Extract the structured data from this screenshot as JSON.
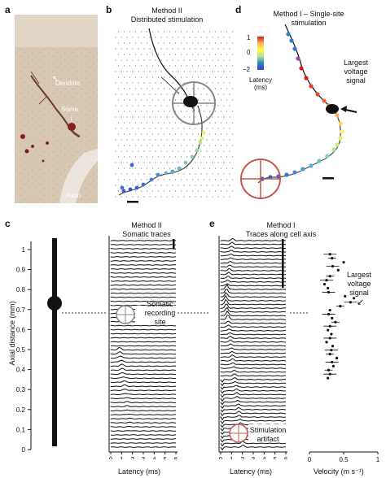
{
  "panels": {
    "a": {
      "letter": "a",
      "labels": {
        "dendrite": "Dendrite",
        "soma": "Soma",
        "axon": "Axon"
      }
    },
    "b": {
      "letter": "b",
      "title_line1": "Method II",
      "title_line2": "Distributed stimulation"
    },
    "c": {
      "letter": "c",
      "ylabel": "Axial distance (mm)",
      "yticks": [
        "0",
        "0.1",
        "0.2",
        "0.3",
        "0.4",
        "0.5",
        "0.6",
        "0.7",
        "0.8",
        "0.9",
        "1"
      ],
      "traces_title_line1": "Method II",
      "traces_title_line2": "Somatic traces",
      "site_label_line1": "Somatic",
      "site_label_line2": "recording",
      "site_label_line3": "site",
      "xlabel": "Latency (ms)",
      "xticks": [
        "0",
        "1",
        "2",
        "3",
        "4",
        "5",
        "6"
      ]
    },
    "d": {
      "letter": "d",
      "title_line1": "Method I – Single-site",
      "title_line2": "stimulation",
      "colorbar_ticks": [
        "1",
        "0",
        "−2"
      ],
      "colorbar_label_line1": "Latency",
      "colorbar_label_line2": "(ms)",
      "colorbar_colors": [
        "#d7191c",
        "#fdae61",
        "#ffff33",
        "#abdda4",
        "#2b83ba",
        "#3b3bd0"
      ],
      "arrow_label_line1": "Largest",
      "arrow_label_line2": "voltage",
      "arrow_label_line3": "signal"
    },
    "e": {
      "letter": "e",
      "traces_title_line1": "Method I",
      "traces_title_line2": "Traces along cell axis",
      "artifact_label_line1": "Stimulation",
      "artifact_label_line2": "artifact",
      "xlabel": "Latency (ms)",
      "xticks": [
        "0",
        "1",
        "2",
        "3",
        "4",
        "5",
        "6"
      ],
      "arrow_label_line1": "Largest",
      "arrow_label_line2": "voltage",
      "arrow_label_line3": "signal",
      "velocity_xlabel": "Velocity (m s⁻¹)",
      "velocity_xticks": [
        "0",
        "0.5",
        "1"
      ]
    }
  },
  "chart_data": {
    "type": "scatter",
    "title": "",
    "xlabel": "Velocity (m s⁻¹)",
    "ylabel": "",
    "xlim": [
      0,
      1
    ],
    "ylim": [
      0,
      1.05
    ],
    "x": [
      0.3,
      0.33,
      0.5,
      0.34,
      0.42,
      0.3,
      0.25,
      0.22,
      0.27,
      0.28,
      0.52,
      0.65,
      0.6,
      0.45,
      0.3,
      0.28,
      0.33,
      0.38,
      0.3,
      0.27,
      0.32,
      0.3,
      0.25,
      0.34,
      0.32,
      0.3,
      0.4,
      0.33,
      0.35,
      0.28,
      0.3,
      0.27
    ],
    "y": [
      0.99,
      0.97,
      0.95,
      0.93,
      0.91,
      0.88,
      0.86,
      0.84,
      0.82,
      0.8,
      0.78,
      0.77,
      0.75,
      0.73,
      0.71,
      0.69,
      0.67,
      0.65,
      0.63,
      0.61,
      0.59,
      0.57,
      0.55,
      0.53,
      0.51,
      0.49,
      0.47,
      0.45,
      0.43,
      0.41,
      0.39,
      0.37
    ]
  }
}
